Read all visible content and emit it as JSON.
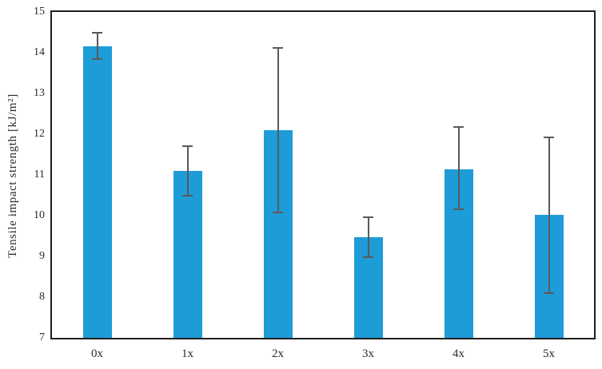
{
  "chart_data": {
    "type": "bar",
    "categories": [
      "0x",
      "1x",
      "2x",
      "3x",
      "4x",
      "5x"
    ],
    "values": [
      14.16,
      11.09,
      12.09,
      9.48,
      11.14,
      10.02
    ],
    "error_low": [
      13.84,
      10.49,
      10.08,
      8.99,
      10.15,
      8.1
    ],
    "error_high": [
      14.5,
      11.7,
      14.12,
      9.96,
      12.17,
      11.93
    ],
    "title": "",
    "xlabel": "",
    "ylabel": "Tensile impact strength [kJ/m²]",
    "ylim": [
      7,
      15
    ],
    "yticks": [
      7,
      8,
      9,
      10,
      11,
      12,
      13,
      14,
      15
    ],
    "grid": false,
    "legend": null,
    "bar_color": "#1E9CD8",
    "error_color": "#595959",
    "frame_color": "#1f1f1f",
    "tick_text_color": "#2b2b2b"
  }
}
